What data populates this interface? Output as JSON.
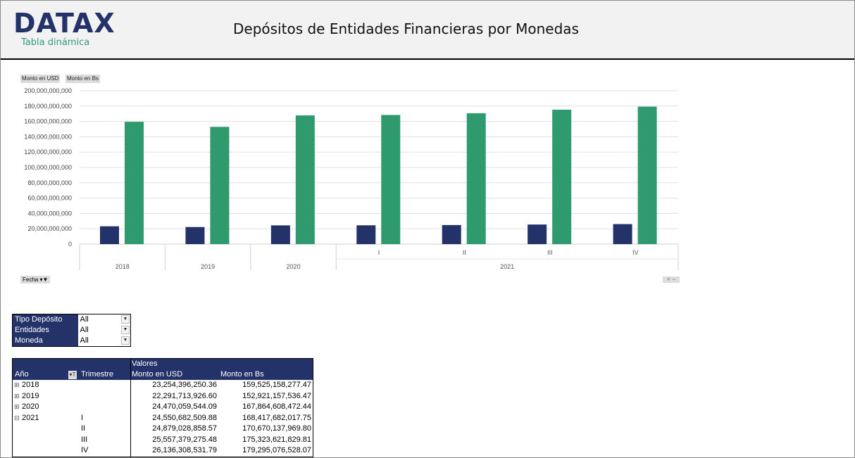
{
  "header": {
    "logo": "DATAX",
    "logo_subtitle": "Tabla dinámica",
    "title": "Depósitos de Entidades Financieras por Monedas"
  },
  "chart_data": {
    "type": "bar",
    "legend": [
      "Monto en USD",
      "Monto en Bs"
    ],
    "colors": [
      "#24326a",
      "#2f9a6e"
    ],
    "categories": [
      {
        "year": "2018",
        "quarter": ""
      },
      {
        "year": "2019",
        "quarter": ""
      },
      {
        "year": "2020",
        "quarter": ""
      },
      {
        "year": "2021",
        "quarter": "I"
      },
      {
        "year": "2021",
        "quarter": "II"
      },
      {
        "year": "2021",
        "quarter": "III"
      },
      {
        "year": "2021",
        "quarter": "IV"
      }
    ],
    "groups": [
      {
        "label": "2018",
        "span": 1
      },
      {
        "label": "2019",
        "span": 1
      },
      {
        "label": "2020",
        "span": 1
      },
      {
        "label": "2021",
        "span": 4
      }
    ],
    "series": [
      {
        "name": "Monto en USD",
        "values": [
          23254396250.36,
          22291713926.6,
          24470059544.09,
          24550682509.88,
          24879028858.57,
          25557379275.48,
          26136308531.79
        ]
      },
      {
        "name": "Monto en Bs",
        "values": [
          159525158277.47,
          152921157536.47,
          167864608472.44,
          168417682017.75,
          170670137969.8,
          175323621829.81,
          179295076528.07
        ]
      }
    ],
    "ylim": [
      0,
      200000000000
    ],
    "yticks": [
      "0",
      "20,000,000,000",
      "40,000,000,000",
      "60,000,000,000",
      "80,000,000,000",
      "100,000,000,000",
      "120,000,000,000",
      "140,000,000,000",
      "160,000,000,000",
      "180,000,000,000",
      "200,000,000,000"
    ],
    "grid": true,
    "field_button": "Fecha",
    "zoom_buttons": "+ −"
  },
  "filters": [
    {
      "label": "Tipo Depósito",
      "value": "All"
    },
    {
      "label": "Entidades",
      "value": "All"
    },
    {
      "label": "Moneda",
      "value": "All"
    }
  ],
  "pivot": {
    "values_label": "Valores",
    "col_year": "Año",
    "col_quarter": "Trimestre",
    "col_usd": "Monto en USD",
    "col_bs": "Monto en Bs",
    "rows": [
      {
        "toggle": "⊞",
        "year": "2018",
        "quarter": "",
        "usd": "23,254,396,250.36",
        "bs": "159,525,158,277.47"
      },
      {
        "toggle": "⊞",
        "year": "2019",
        "quarter": "",
        "usd": "22,291,713,926.60",
        "bs": "152,921,157,536.47"
      },
      {
        "toggle": "⊞",
        "year": "2020",
        "quarter": "",
        "usd": "24,470,059,544.09",
        "bs": "167,864,608,472.44"
      },
      {
        "toggle": "⊟",
        "year": "2021",
        "quarter": "I",
        "usd": "24,550,682,509.88",
        "bs": "168,417,682,017.75"
      },
      {
        "toggle": "",
        "year": "",
        "quarter": "II",
        "usd": "24,879,028,858.57",
        "bs": "170,670,137,969.80"
      },
      {
        "toggle": "",
        "year": "",
        "quarter": "III",
        "usd": "25,557,379,275.48",
        "bs": "175,323,621,829.81"
      },
      {
        "toggle": "",
        "year": "",
        "quarter": "IV",
        "usd": "26,136,308,531.79",
        "bs": "179,295,076,528.07"
      }
    ]
  }
}
